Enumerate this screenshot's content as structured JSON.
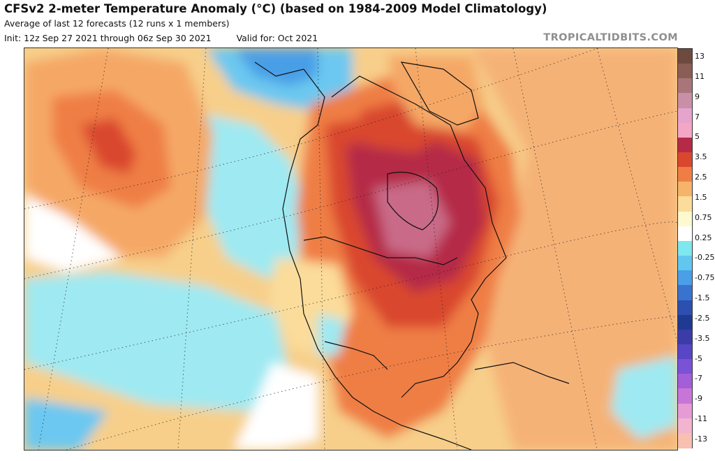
{
  "header": {
    "title": "CFSv2 2-meter Temperature Anomaly (°C) (based on 1984-2009 Model Climatology)",
    "subtitle": "Average of last 12 forecasts (12 runs x 1 members)",
    "init": "Init: 12z Sep 27 2021 through 06z Sep 30 2021",
    "valid": "Valid for: Oct 2021",
    "site": "TROPICALTIDBITS.COM"
  },
  "colorbar": {
    "labels": [
      "13",
      "11",
      "9",
      "7",
      "5",
      "3.5",
      "2.5",
      "1.5",
      "0.75",
      "0.25",
      "-0.25",
      "-0.75",
      "-1.5",
      "-2.5",
      "-3.5",
      "-5",
      "-7",
      "-9",
      "-11",
      "-13"
    ],
    "colors": [
      "#6e4a3e",
      "#8a5d55",
      "#a8767a",
      "#c98fa6",
      "#e6a3cc",
      "#f4a6c6",
      "#b52a46",
      "#d9472f",
      "#ef7e45",
      "#f6b36b",
      "#fbdc9a",
      "#fff9cf",
      "#ffffff",
      "#7fe7ef",
      "#62c7ef",
      "#4a9fe6",
      "#3a72cf",
      "#2d4fb0",
      "#1f3a92",
      "#3b3ca8",
      "#5746c6",
      "#7a52d6",
      "#a45ed8",
      "#c776d8",
      "#e69ad6",
      "#f3b4cf",
      "#f7c0b0"
    ]
  },
  "map": {
    "colors": {
      "ocean_base": "#f7cf8a",
      "warm_light": "#fbe3a8",
      "warm_mid": "#f5a866",
      "warm_strong": "#e8743e",
      "hot": "#d9472f",
      "very_hot": "#b52a46",
      "extreme": "#9e3a52",
      "pink": "#c96a88",
      "cold_light": "#9fe9f2",
      "cold_mid": "#6cc8f0",
      "cold_strong": "#4a9fe6",
      "cold_deep": "#2d4fb0"
    }
  }
}
